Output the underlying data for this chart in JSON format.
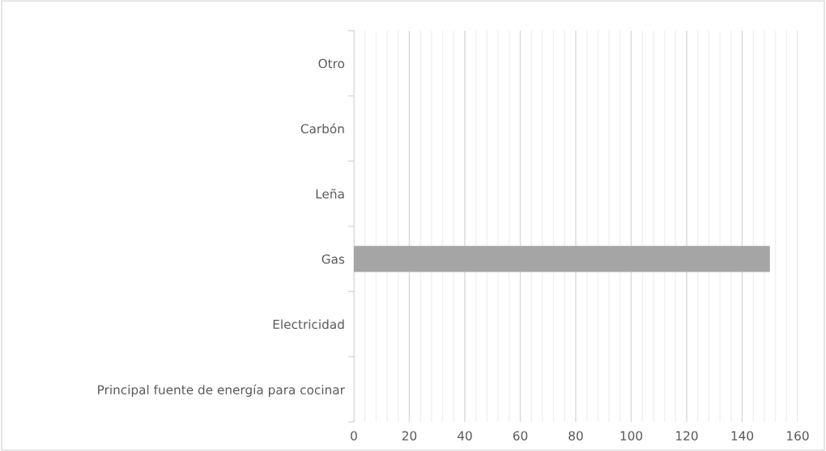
{
  "chart_data": {
    "type": "bar",
    "orientation": "horizontal",
    "categories": [
      "Otro",
      "Carbón",
      "Leña",
      "Gas",
      "Electricidad",
      "Principal fuente de energía para cocinar"
    ],
    "values": [
      0,
      0,
      0,
      150,
      0,
      null
    ],
    "color": "#a5a5a5",
    "xlim": [
      0,
      160
    ],
    "xticks": [
      0,
      {
        "value": 4,
        "label": null
      },
      {
        "value": 8,
        "label": null
      },
      {
        "value": 12,
        "label": null
      },
      {
        "value": 16,
        "label": null
      },
      20,
      {
        "value": 24,
        "label": null
      },
      {
        "value": 28,
        "label": null
      },
      {
        "value": 32,
        "label": null
      },
      {
        "value": 36,
        "label": null
      },
      40,
      {
        "value": 44,
        "label": null
      },
      {
        "value": 48,
        "label": null
      },
      {
        "value": 52,
        "label": null
      },
      {
        "value": 56,
        "label": null
      },
      60,
      {
        "value": 64,
        "label": null
      },
      {
        "value": 68,
        "label": null
      },
      {
        "value": 72,
        "label": null
      },
      {
        "value": 76,
        "label": null
      },
      80,
      {
        "value": 84,
        "label": null
      },
      {
        "value": 88,
        "label": null
      },
      {
        "value": 92,
        "label": null
      },
      {
        "value": 96,
        "label": null
      },
      100,
      {
        "value": 104,
        "label": null
      },
      {
        "value": 108,
        "label": null
      },
      {
        "value": 112,
        "label": null
      },
      {
        "value": 116,
        "label": null
      },
      120,
      {
        "value": 124,
        "label": null
      },
      {
        "value": 128,
        "label": null
      },
      {
        "value": 132,
        "label": null
      },
      {
        "value": 136,
        "label": null
      },
      140,
      {
        "value": 144,
        "label": null
      },
      {
        "value": 148,
        "label": null
      },
      {
        "value": 152,
        "label": null
      },
      {
        "value": 156,
        "label": null
      },
      160
    ],
    "grid": "x"
  }
}
